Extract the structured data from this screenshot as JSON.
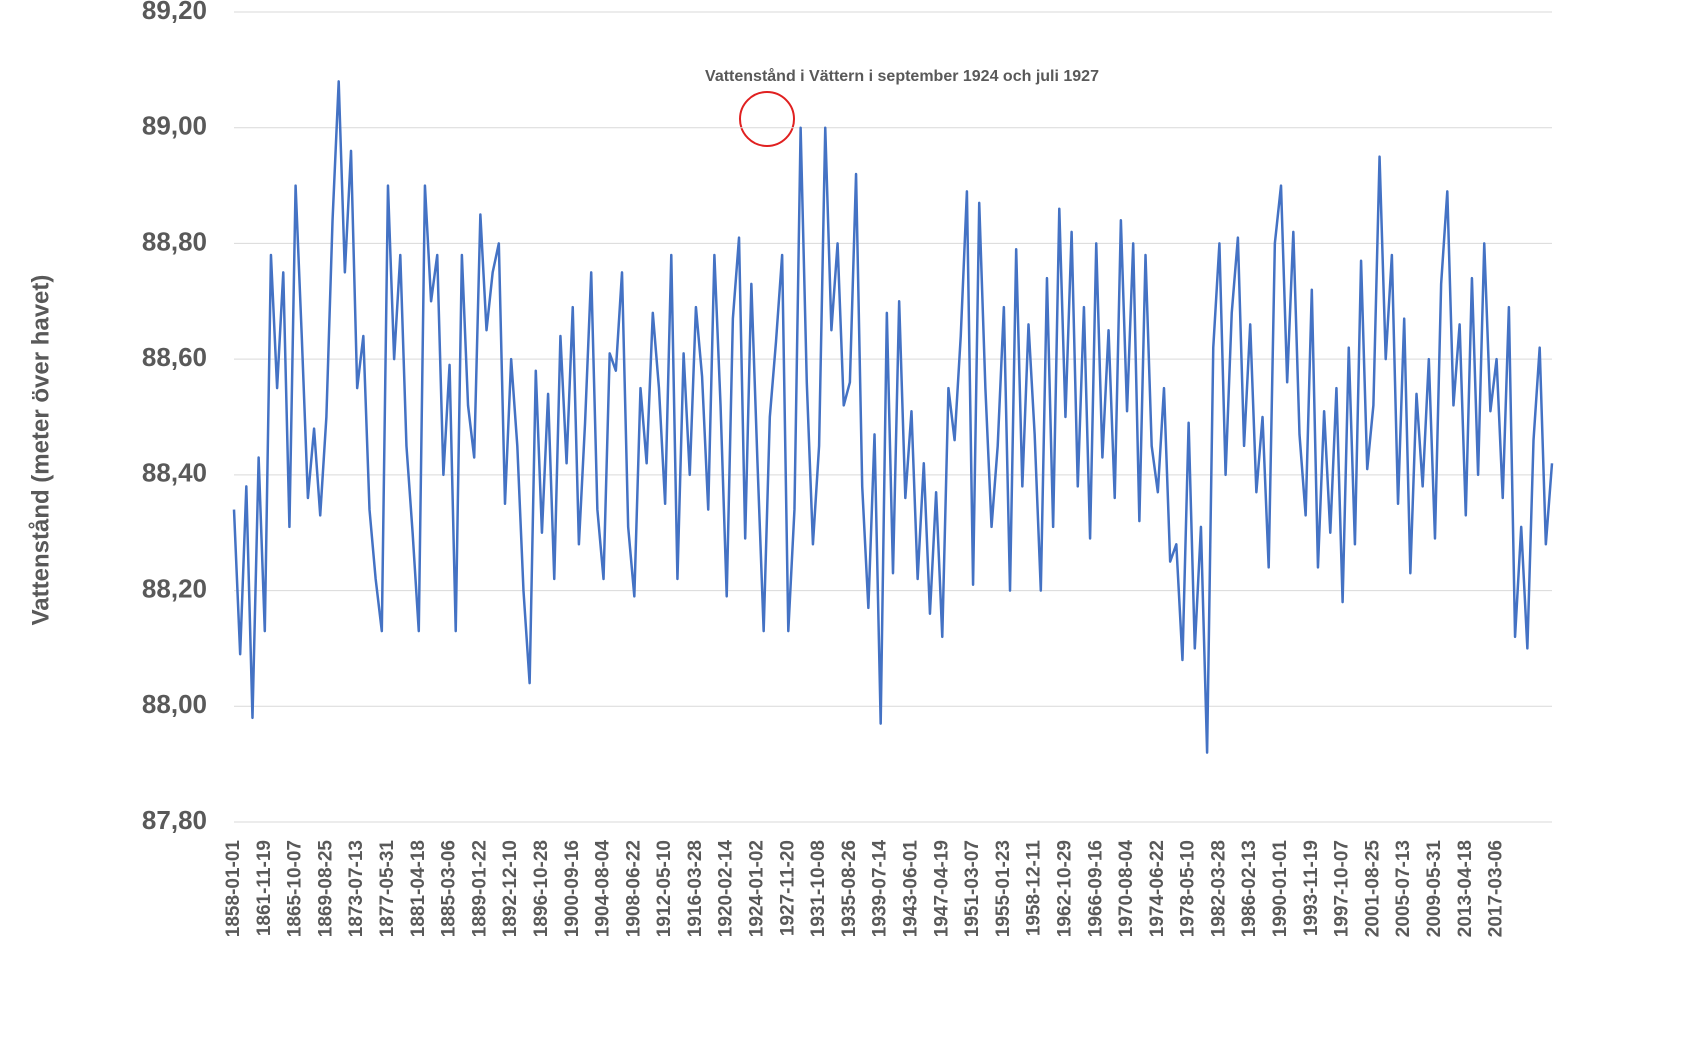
{
  "chart_data": {
    "type": "line",
    "y_label": "Vattenstånd (meter över havet)",
    "annotation": "Vattenstånd i Vättern i september 1924 och juli 1927",
    "color": "#4472c4",
    "ylim": [
      87.8,
      89.2
    ],
    "yticks": [
      {
        "value": 87.8,
        "label": "87,80"
      },
      {
        "value": 88,
        "label": "88,00"
      },
      {
        "value": 88.2,
        "label": "88,20"
      },
      {
        "value": 88.4,
        "label": "88,40"
      },
      {
        "value": 88.6,
        "label": "88,60"
      },
      {
        "value": 88.8,
        "label": "88,80"
      },
      {
        "value": 89,
        "label": "89,00"
      },
      {
        "value": 89.2,
        "label": "89,20"
      }
    ],
    "grid": true,
    "categories": [
      "1858-01-01",
      null,
      null,
      null,
      null,
      "1861-11-19",
      null,
      null,
      null,
      null,
      "1865-10-07",
      null,
      null,
      null,
      null,
      "1869-08-25",
      null,
      null,
      null,
      null,
      "1873-07-13",
      null,
      null,
      null,
      null,
      "1877-05-31",
      null,
      null,
      null,
      null,
      "1881-04-18",
      null,
      null,
      null,
      null,
      "1885-03-06",
      null,
      null,
      null,
      null,
      "1889-01-22",
      null,
      null,
      null,
      null,
      "1892-12-10",
      null,
      null,
      null,
      null,
      "1896-10-28",
      null,
      null,
      null,
      null,
      "1900-09-16",
      null,
      null,
      null,
      null,
      "1904-08-04",
      null,
      null,
      null,
      null,
      "1908-06-22",
      null,
      null,
      null,
      null,
      "1912-05-10",
      null,
      null,
      null,
      null,
      "1916-03-28",
      null,
      null,
      null,
      null,
      "1920-02-14",
      null,
      null,
      null,
      null,
      "1924-01-02",
      null,
      null,
      null,
      null,
      "1927-11-20",
      null,
      null,
      null,
      null,
      "1931-10-08",
      null,
      null,
      null,
      null,
      "1935-08-26",
      null,
      null,
      null,
      null,
      "1939-07-14",
      null,
      null,
      null,
      null,
      "1943-06-01",
      null,
      null,
      null,
      null,
      "1947-04-19",
      null,
      null,
      null,
      null,
      "1951-03-07",
      null,
      null,
      null,
      null,
      "1955-01-23",
      null,
      null,
      null,
      null,
      "1958-12-11",
      null,
      null,
      null,
      null,
      "1962-10-29",
      null,
      null,
      null,
      null,
      "1966-09-16",
      null,
      null,
      null,
      null,
      "1970-08-04",
      null,
      null,
      null,
      null,
      "1974-06-22",
      null,
      null,
      null,
      null,
      "1978-05-10",
      null,
      null,
      null,
      null,
      "1982-03-28",
      null,
      null,
      null,
      null,
      "1986-02-13",
      null,
      null,
      null,
      null,
      "1990-01-01",
      null,
      null,
      null,
      null,
      "1993-11-19",
      null,
      null,
      null,
      null,
      "1997-10-07",
      null,
      null,
      null,
      null,
      "2001-08-25",
      null,
      null,
      null,
      null,
      "2005-07-13",
      null,
      null,
      null,
      null,
      "2009-05-31",
      null,
      null,
      null,
      null,
      "2013-04-18",
      null,
      null,
      null,
      null,
      "2017-03-06",
      null,
      null,
      null,
      null,
      null,
      null,
      null,
      null,
      null
    ],
    "values": [
      88.34,
      88.09,
      88.38,
      87.98,
      88.43,
      88.13,
      88.78,
      88.55,
      88.75,
      88.31,
      88.9,
      88.64,
      88.36,
      88.48,
      88.33,
      88.5,
      88.84,
      89.08,
      88.75,
      88.96,
      88.55,
      88.64,
      88.34,
      88.22,
      88.13,
      88.9,
      88.6,
      88.78,
      88.45,
      88.3,
      88.13,
      88.9,
      88.7,
      88.78,
      88.4,
      88.59,
      88.13,
      88.78,
      88.52,
      88.43,
      88.85,
      88.65,
      88.75,
      88.8,
      88.35,
      88.6,
      88.45,
      88.2,
      88.04,
      88.58,
      88.3,
      88.54,
      88.22,
      88.64,
      88.42,
      88.69,
      88.28,
      88.49,
      88.75,
      88.34,
      88.22,
      88.61,
      88.58,
      88.75,
      88.31,
      88.19,
      88.55,
      88.42,
      88.68,
      88.55,
      88.35,
      88.78,
      88.22,
      88.61,
      88.4,
      88.69,
      88.57,
      88.34,
      88.78,
      88.52,
      88.19,
      88.67,
      88.81,
      88.29,
      88.73,
      88.42,
      88.13,
      88.5,
      88.63,
      88.78,
      88.13,
      88.34,
      89.0,
      88.56,
      88.28,
      88.45,
      89.0,
      88.65,
      88.8,
      88.52,
      88.56,
      88.92,
      88.38,
      88.17,
      88.47,
      87.97,
      88.68,
      88.23,
      88.7,
      88.36,
      88.51,
      88.22,
      88.42,
      88.16,
      88.37,
      88.12,
      88.55,
      88.46,
      88.64,
      88.89,
      88.21,
      88.87,
      88.55,
      88.31,
      88.45,
      88.69,
      88.2,
      88.79,
      88.38,
      88.66,
      88.47,
      88.2,
      88.74,
      88.31,
      88.86,
      88.5,
      88.82,
      88.38,
      88.69,
      88.29,
      88.8,
      88.43,
      88.65,
      88.36,
      88.84,
      88.51,
      88.8,
      88.32,
      88.78,
      88.45,
      88.37,
      88.55,
      88.25,
      88.28,
      88.08,
      88.49,
      88.1,
      88.31,
      87.92,
      88.62,
      88.8,
      88.4,
      88.68,
      88.81,
      88.45,
      88.66,
      88.37,
      88.5,
      88.24,
      88.8,
      88.9,
      88.56,
      88.82,
      88.47,
      88.33,
      88.72,
      88.24,
      88.51,
      88.3,
      88.55,
      88.18,
      88.62,
      88.28,
      88.77,
      88.41,
      88.52,
      88.95,
      88.6,
      88.78,
      88.35,
      88.67,
      88.23,
      88.54,
      88.38,
      88.6,
      88.29,
      88.73,
      88.89,
      88.52,
      88.66,
      88.33,
      88.74,
      88.4,
      88.8,
      88.51,
      88.6,
      88.36,
      88.69,
      88.12,
      88.31,
      88.1,
      88.46,
      88.62,
      88.28,
      88.42
    ]
  }
}
